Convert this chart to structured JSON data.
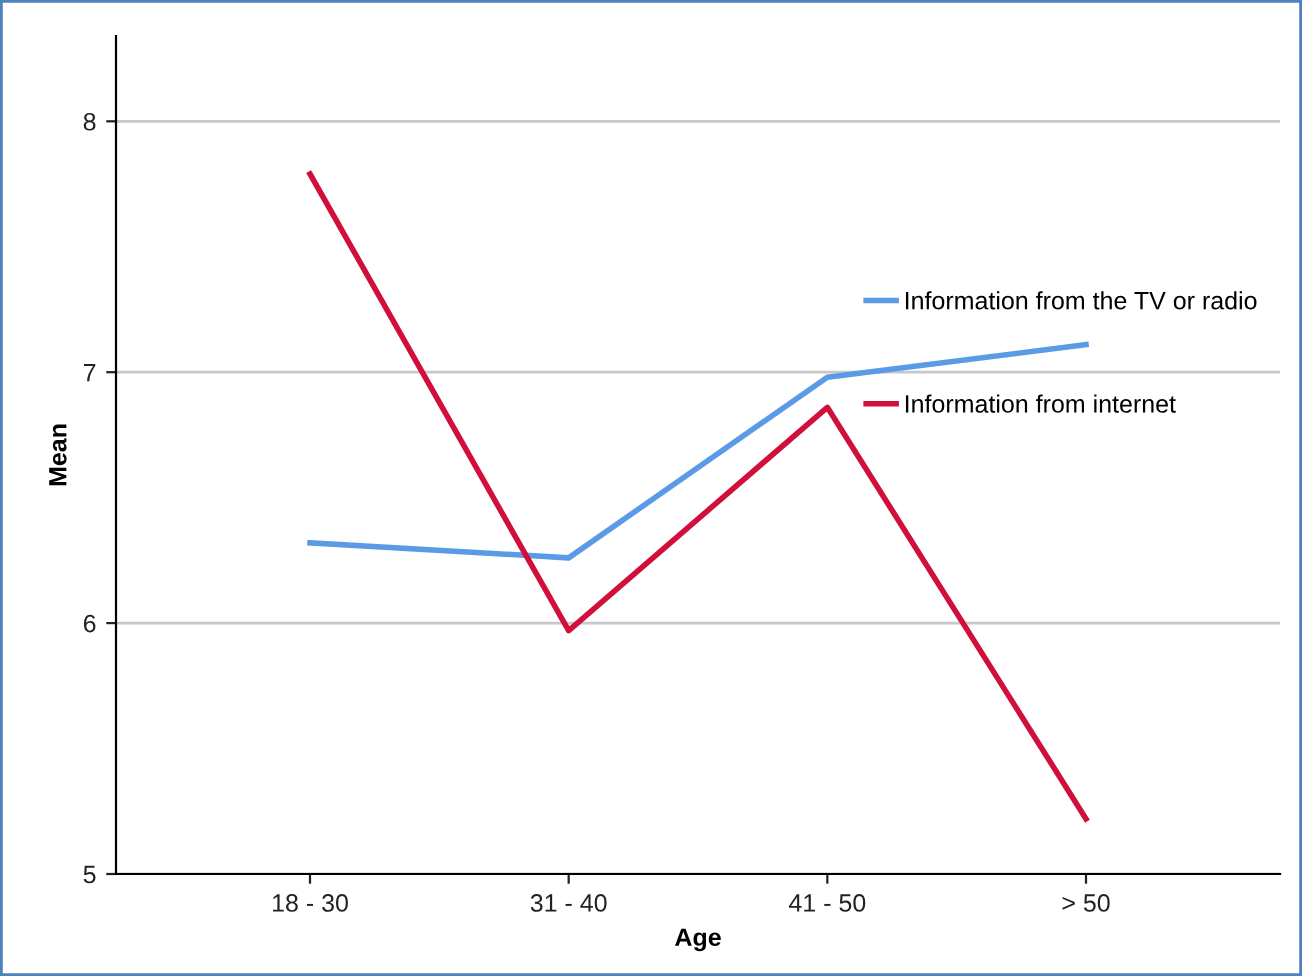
{
  "chart_data": {
    "type": "line",
    "xlabel": "Age",
    "ylabel": "Mean",
    "categories": [
      "18 - 30",
      "31 - 40",
      "41 - 50",
      "> 50"
    ],
    "series": [
      {
        "name": "Information from the TV or radio",
        "color": "#5b9be6",
        "values": [
          6.32,
          6.26,
          6.98,
          7.11
        ]
      },
      {
        "name": "Information from internet",
        "color": "#d0103a",
        "values": [
          7.79,
          5.97,
          6.86,
          5.22
        ]
      }
    ],
    "ylim": [
      5,
      8.34
    ],
    "yticks": [
      5,
      6,
      7,
      8
    ],
    "grid": "y",
    "legend": "right",
    "marker": "none",
    "line_style": "solid"
  }
}
